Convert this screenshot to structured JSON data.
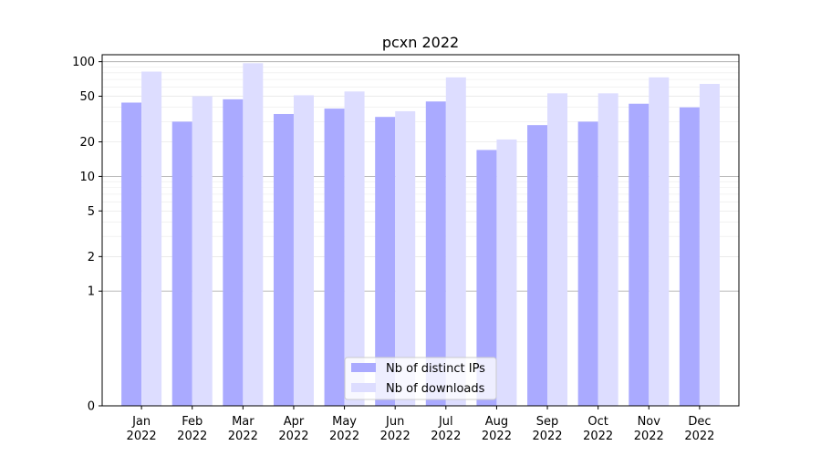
{
  "chart_data": {
    "type": "bar",
    "title": "pcxn 2022",
    "xlabel": "",
    "ylabel": "",
    "yscale": "symlog",
    "ylim": [
      0,
      115
    ],
    "yticks": [
      0,
      1,
      2,
      5,
      10,
      20,
      50,
      100
    ],
    "grid": true,
    "legend_position": "bottom-center",
    "categories": [
      [
        "Jan",
        "2022"
      ],
      [
        "Feb",
        "2022"
      ],
      [
        "Mar",
        "2022"
      ],
      [
        "Apr",
        "2022"
      ],
      [
        "May",
        "2022"
      ],
      [
        "Jun",
        "2022"
      ],
      [
        "Jul",
        "2022"
      ],
      [
        "Aug",
        "2022"
      ],
      [
        "Sep",
        "2022"
      ],
      [
        "Oct",
        "2022"
      ],
      [
        "Nov",
        "2022"
      ],
      [
        "Dec",
        "2022"
      ]
    ],
    "series": [
      {
        "name": "Nb of distinct IPs",
        "color": "#aaaaff",
        "values": [
          44,
          30,
          47,
          35,
          39,
          33,
          45,
          17,
          28,
          30,
          43,
          40
        ]
      },
      {
        "name": "Nb of downloads",
        "color": "#ddddff",
        "values": [
          82,
          50,
          97,
          51,
          55,
          37,
          73,
          21,
          53,
          53,
          73,
          64
        ]
      }
    ]
  }
}
